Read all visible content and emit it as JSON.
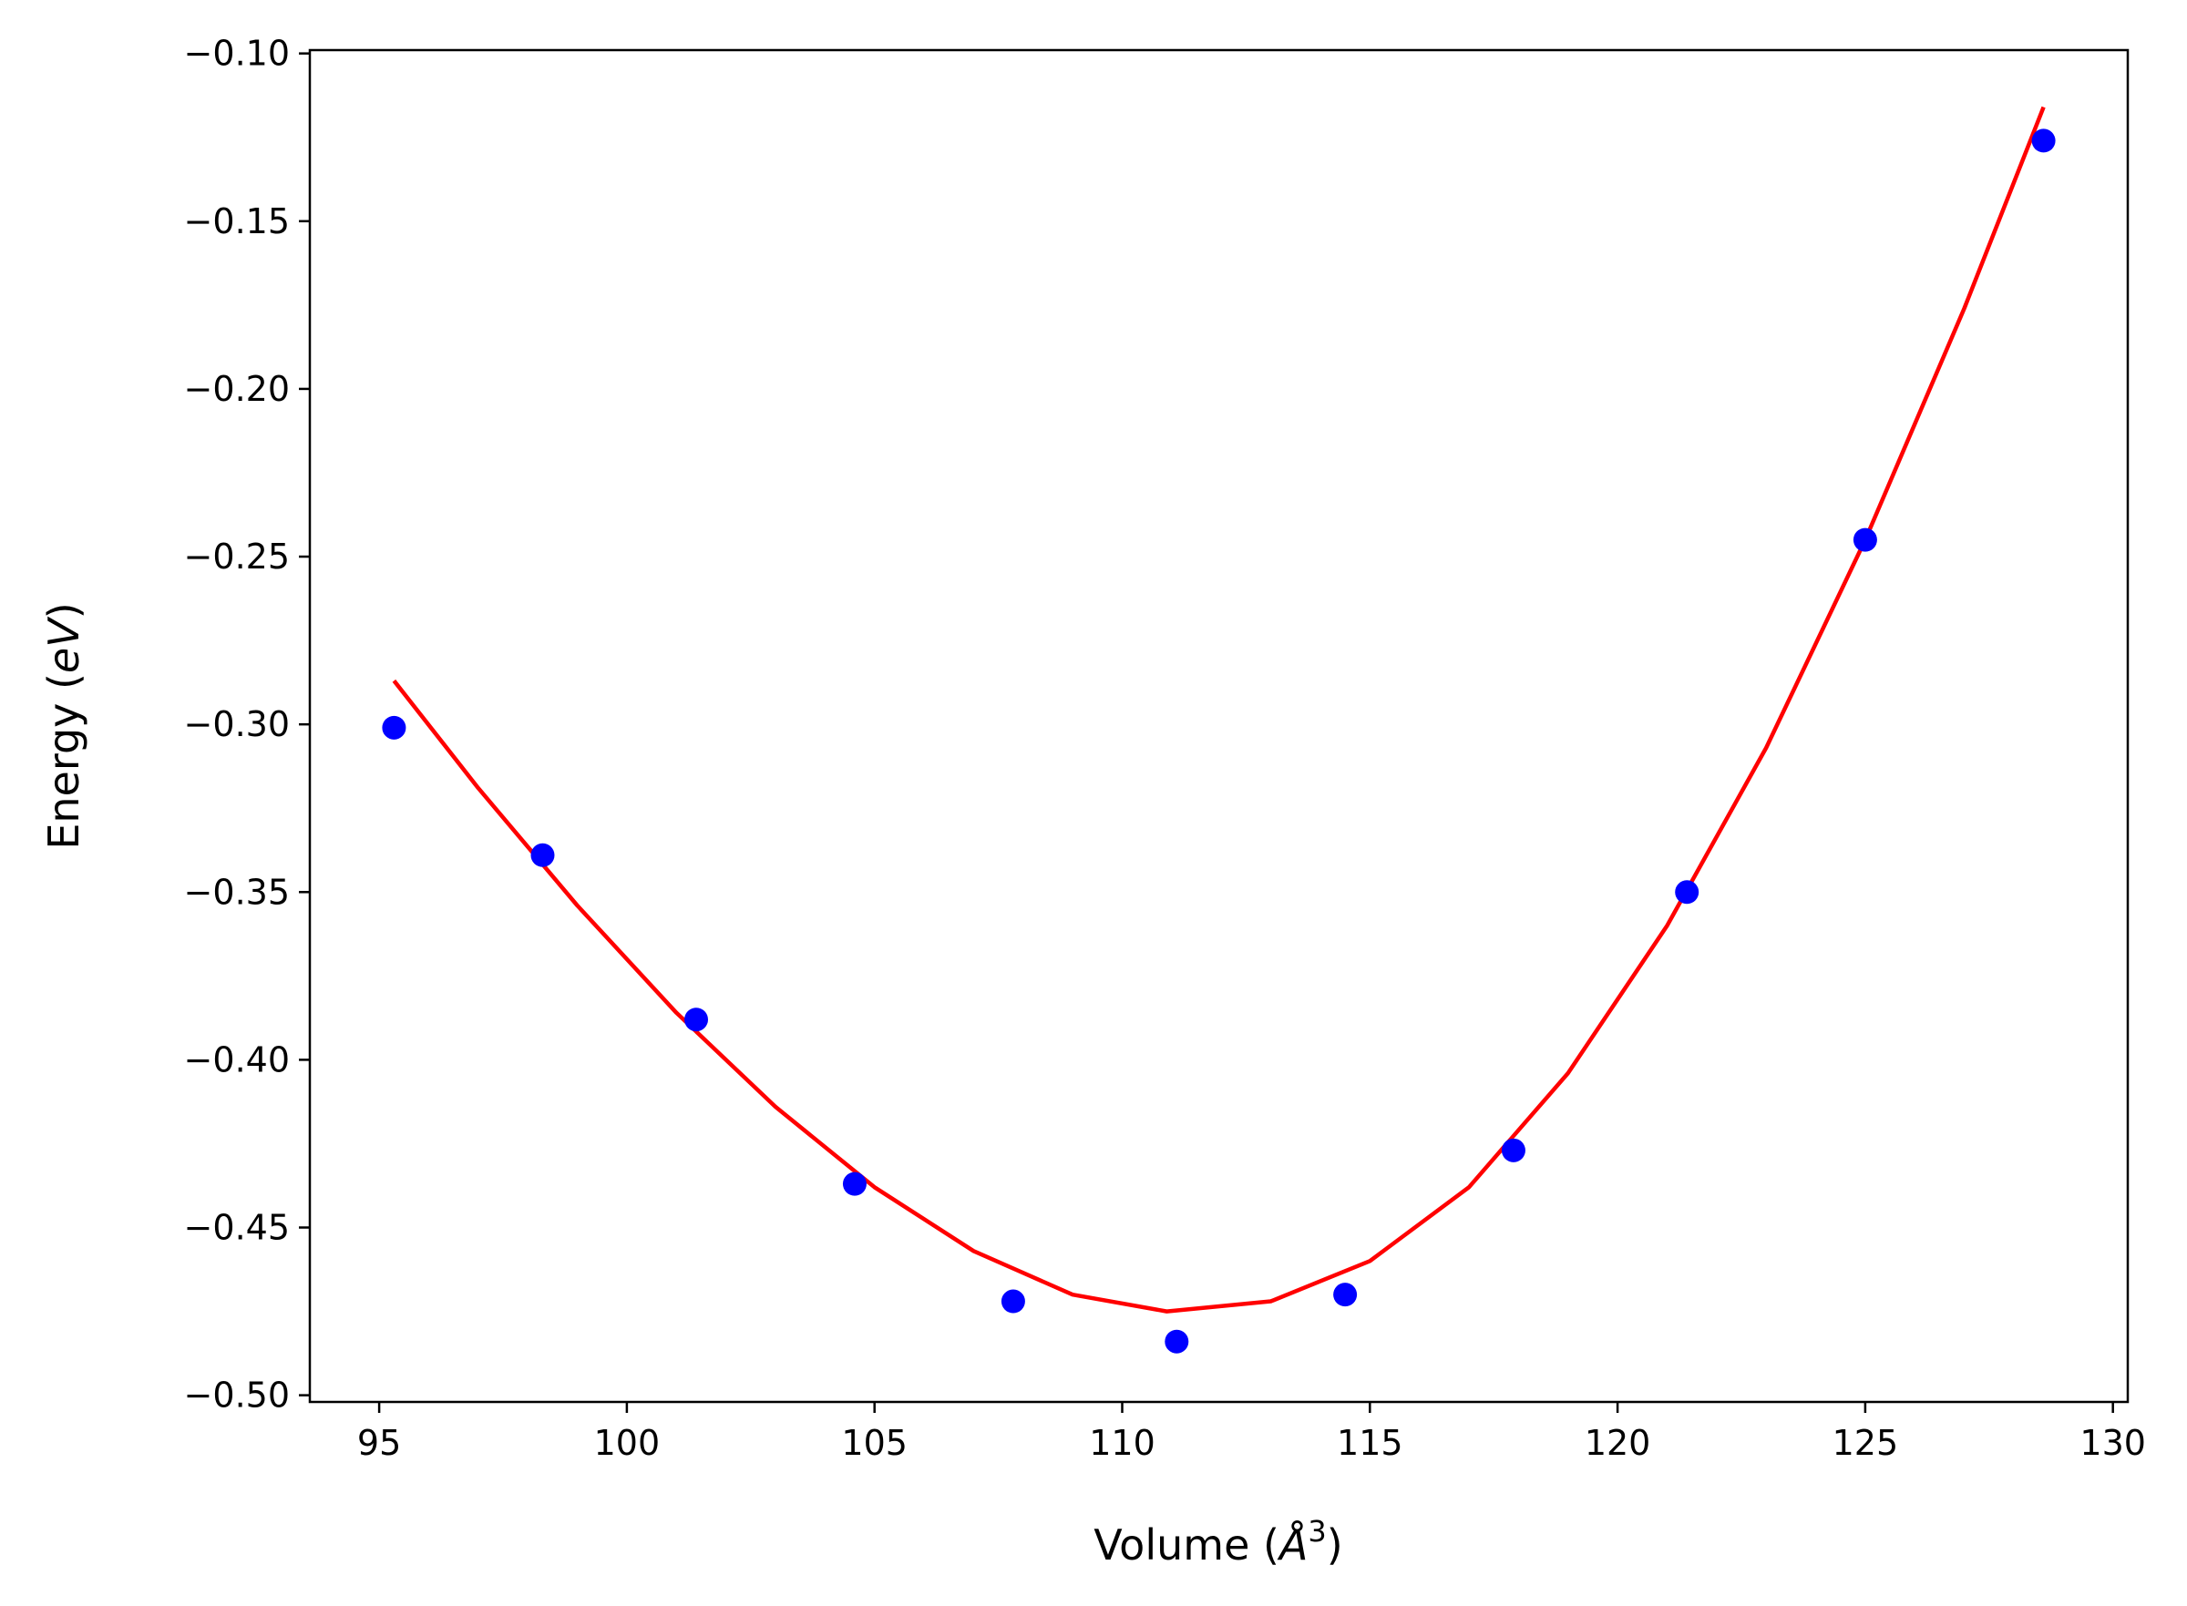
{
  "chart_data": {
    "type": "scatter",
    "title": "",
    "xlabel": "Volume (Å³)",
    "ylabel": "Energy (eV)",
    "xlabel_parts": {
      "prefix": "Volume (",
      "unit": "Å",
      "sup": "3",
      "suffix": ")"
    },
    "ylabel_parts": {
      "prefix": "Energy (",
      "unit": "eV",
      "suffix": ")"
    },
    "xlim": [
      93.6,
      130.3
    ],
    "ylim": [
      -0.502,
      -0.099
    ],
    "xticks": [
      95,
      100,
      105,
      110,
      115,
      120,
      125,
      130
    ],
    "yticks": [
      -0.1,
      -0.15,
      -0.2,
      -0.25,
      -0.3,
      -0.35,
      -0.4,
      -0.45,
      -0.5
    ],
    "xtick_labels": [
      "95",
      "100",
      "105",
      "110",
      "115",
      "120",
      "125",
      "130"
    ],
    "ytick_labels": [
      "−0.10",
      "−0.15",
      "−0.20",
      "−0.25",
      "−0.30",
      "−0.35",
      "−0.40",
      "−0.45",
      "−0.50"
    ],
    "grid": false,
    "series": [
      {
        "kind": "points",
        "color": "#0000ff",
        "x": [
          95.3,
          98.3,
          101.4,
          104.6,
          107.8,
          111.1,
          114.5,
          117.9,
          121.4,
          125.0,
          128.6
        ],
        "y": [
          -0.301,
          -0.339,
          -0.388,
          -0.437,
          -0.472,
          -0.484,
          -0.47,
          -0.427,
          -0.35,
          -0.245,
          -0.126
        ]
      },
      {
        "kind": "fit-line",
        "color": "#ff0000",
        "x": [
          95.3,
          97.0,
          99.0,
          101.0,
          103.0,
          105.0,
          107.0,
          109.0,
          110.9,
          113.0,
          115.0,
          117.0,
          119.0,
          121.0,
          123.0,
          125.0,
          127.0,
          128.6
        ],
        "y": [
          -0.287,
          -0.319,
          -0.354,
          -0.386,
          -0.414,
          -0.438,
          -0.457,
          -0.47,
          -0.475,
          -0.472,
          -0.46,
          -0.438,
          -0.404,
          -0.36,
          -0.307,
          -0.245,
          -0.176,
          -0.116
        ]
      }
    ]
  }
}
